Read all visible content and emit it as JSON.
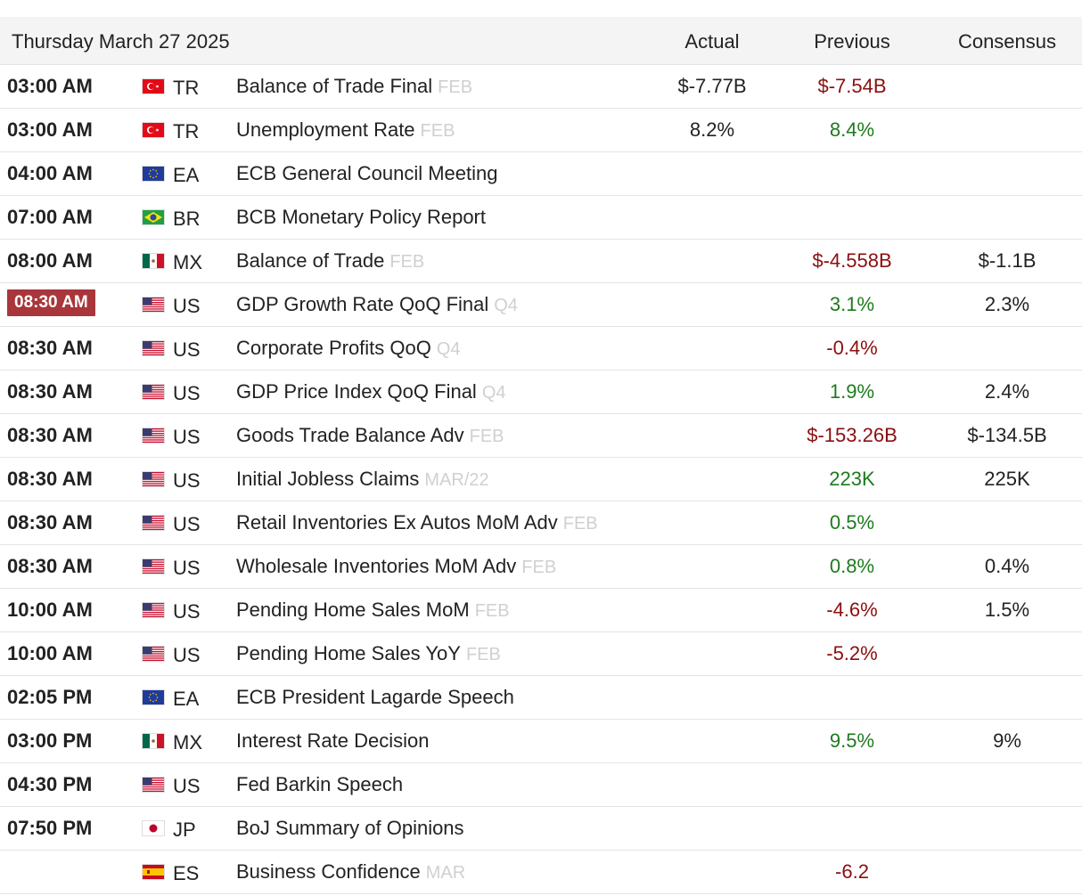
{
  "header": {
    "date": "Thursday March 27 2025",
    "actual_label": "Actual",
    "previous_label": "Previous",
    "consensus_label": "Consensus"
  },
  "colors": {
    "green": "#1e7a1e",
    "red": "#8b0f0f",
    "current_time_bg": "#a8363a"
  },
  "rows": [
    {
      "time": "03:00 AM",
      "flag": "tr-flag-icon",
      "country": "TR",
      "event": "Balance of Trade Final",
      "ref": "FEB",
      "actual": "$-7.77B",
      "previous": "$-7.54B",
      "previous_color": "red",
      "consensus": ""
    },
    {
      "time": "03:00 AM",
      "flag": "tr-flag-icon",
      "country": "TR",
      "event": "Unemployment Rate",
      "ref": "FEB",
      "actual": "8.2%",
      "previous": "8.4%",
      "previous_color": "green",
      "consensus": ""
    },
    {
      "time": "04:00 AM",
      "flag": "eu-flag-icon",
      "country": "EA",
      "event": "ECB General Council Meeting",
      "ref": "",
      "actual": "",
      "previous": "",
      "previous_color": "",
      "consensus": ""
    },
    {
      "time": "07:00 AM",
      "flag": "br-flag-icon",
      "country": "BR",
      "event": "BCB Monetary Policy Report",
      "ref": "",
      "actual": "",
      "previous": "",
      "previous_color": "",
      "consensus": ""
    },
    {
      "time": "08:00 AM",
      "flag": "mx-flag-icon",
      "country": "MX",
      "event": "Balance of Trade",
      "ref": "FEB",
      "actual": "",
      "previous": "$-4.558B",
      "previous_color": "red",
      "consensus": "$-1.1B"
    },
    {
      "time": "08:30 AM",
      "current": true,
      "flag": "us-flag-icon",
      "country": "US",
      "event": "GDP Growth Rate QoQ Final",
      "ref": "Q4",
      "actual": "",
      "previous": "3.1%",
      "previous_color": "green",
      "consensus": "2.3%"
    },
    {
      "time": "08:30 AM",
      "flag": "us-flag-icon",
      "country": "US",
      "event": "Corporate Profits QoQ",
      "ref": "Q4",
      "actual": "",
      "previous": "-0.4%",
      "previous_color": "red",
      "consensus": ""
    },
    {
      "time": "08:30 AM",
      "flag": "us-flag-icon",
      "country": "US",
      "event": "GDP Price Index QoQ Final",
      "ref": "Q4",
      "actual": "",
      "previous": "1.9%",
      "previous_color": "green",
      "consensus": "2.4%"
    },
    {
      "time": "08:30 AM",
      "flag": "us-flag-icon",
      "country": "US",
      "event": "Goods Trade Balance Adv",
      "ref": "FEB",
      "actual": "",
      "previous": "$-153.26B",
      "previous_color": "red",
      "consensus": "$-134.5B"
    },
    {
      "time": "08:30 AM",
      "flag": "us-flag-icon",
      "country": "US",
      "event": "Initial Jobless Claims",
      "ref": "MAR/22",
      "actual": "",
      "previous": "223K",
      "previous_color": "green",
      "consensus": "225K"
    },
    {
      "time": "08:30 AM",
      "flag": "us-flag-icon",
      "country": "US",
      "event": "Retail Inventories Ex Autos MoM Adv",
      "ref": "FEB",
      "actual": "",
      "previous": "0.5%",
      "previous_color": "green",
      "consensus": ""
    },
    {
      "time": "08:30 AM",
      "flag": "us-flag-icon",
      "country": "US",
      "event": "Wholesale Inventories MoM Adv",
      "ref": "FEB",
      "actual": "",
      "previous": "0.8%",
      "previous_color": "green",
      "consensus": "0.4%"
    },
    {
      "time": "10:00 AM",
      "flag": "us-flag-icon",
      "country": "US",
      "event": "Pending Home Sales MoM",
      "ref": "FEB",
      "actual": "",
      "previous": "-4.6%",
      "previous_color": "red",
      "consensus": "1.5%"
    },
    {
      "time": "10:00 AM",
      "flag": "us-flag-icon",
      "country": "US",
      "event": "Pending Home Sales YoY",
      "ref": "FEB",
      "actual": "",
      "previous": "-5.2%",
      "previous_color": "red",
      "consensus": ""
    },
    {
      "time": "02:05 PM",
      "flag": "eu-flag-icon",
      "country": "EA",
      "event": "ECB President Lagarde Speech",
      "ref": "",
      "actual": "",
      "previous": "",
      "previous_color": "",
      "consensus": ""
    },
    {
      "time": "03:00 PM",
      "flag": "mx-flag-icon",
      "country": "MX",
      "event": "Interest Rate Decision",
      "ref": "",
      "actual": "",
      "previous": "9.5%",
      "previous_color": "green",
      "consensus": "9%"
    },
    {
      "time": "04:30 PM",
      "flag": "us-flag-icon",
      "country": "US",
      "event": "Fed Barkin Speech",
      "ref": "",
      "actual": "",
      "previous": "",
      "previous_color": "",
      "consensus": ""
    },
    {
      "time": "07:50 PM",
      "flag": "jp-flag-icon",
      "country": "JP",
      "event": "BoJ Summary of Opinions",
      "ref": "",
      "actual": "",
      "previous": "",
      "previous_color": "",
      "consensus": ""
    },
    {
      "time": "",
      "flag": "es-flag-icon",
      "country": "ES",
      "event": "Business Confidence",
      "ref": "MAR",
      "actual": "",
      "previous": "-6.2",
      "previous_color": "red",
      "consensus": ""
    }
  ]
}
